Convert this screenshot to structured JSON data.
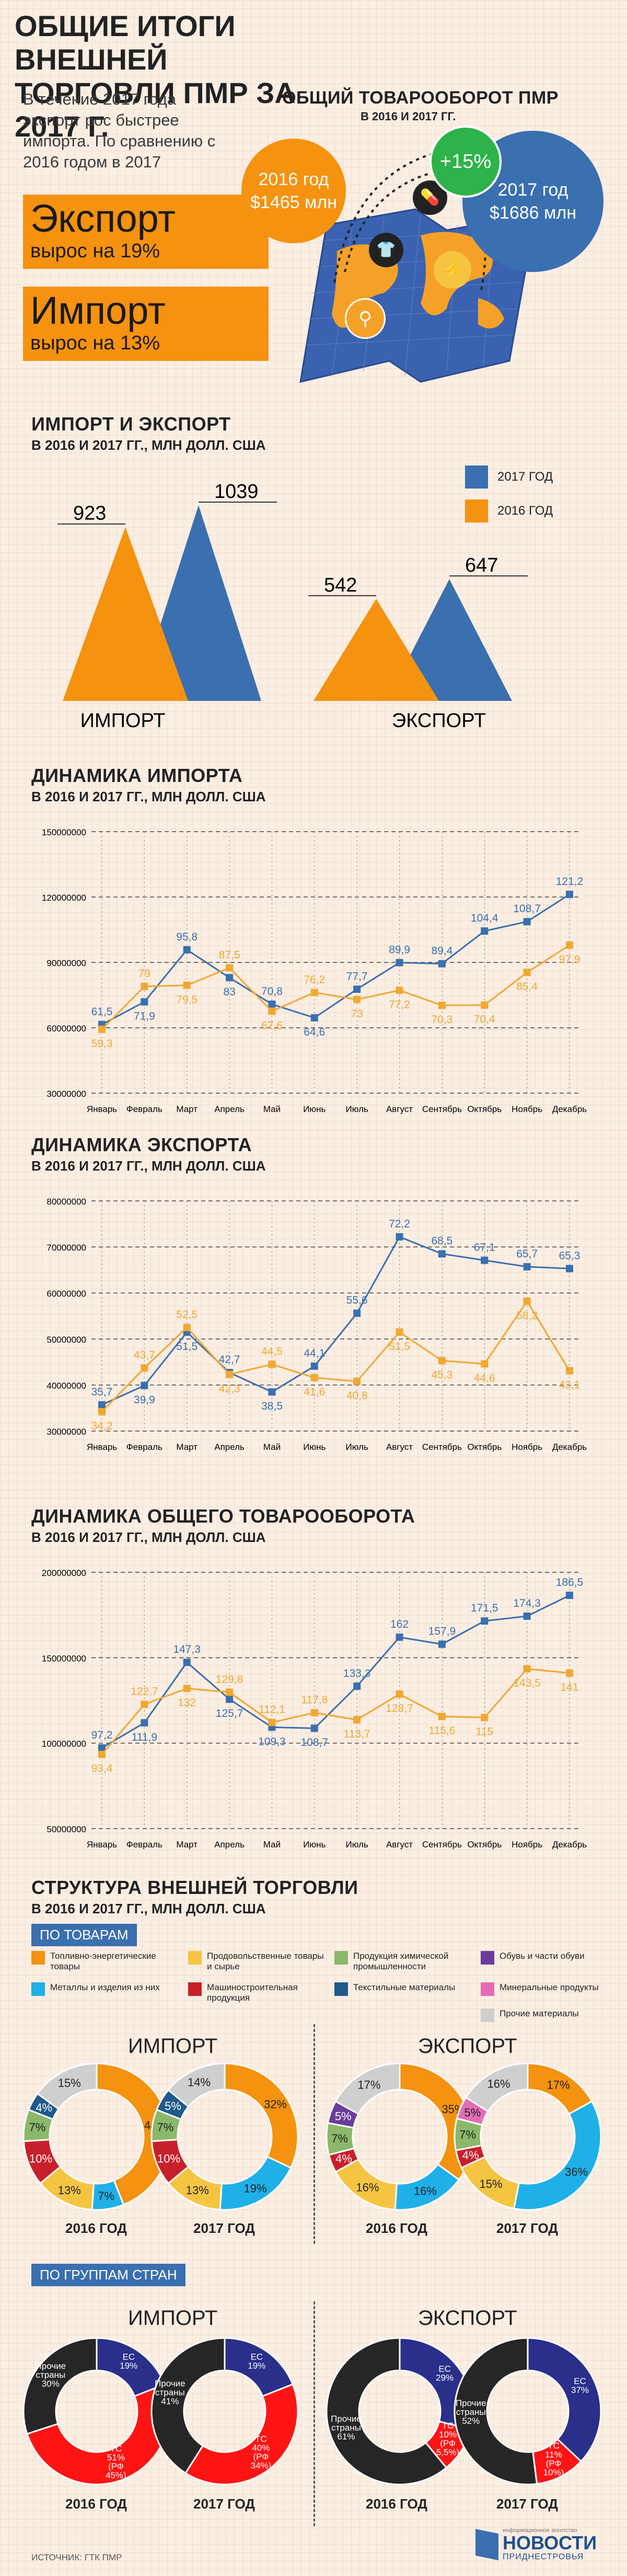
{
  "title": "ОБЩИЕ ИТОГИ ВНЕШНЕЙ ТОРГОВЛИ ПМР ЗА 2017 Г.",
  "intro": "В течение 2017 года экспорт рос быстрее импорта. По сравнению с 2016 годом в 2017",
  "export_box": {
    "big": "Экспорт",
    "small": "вырос на 19%"
  },
  "import_box": {
    "big": "Импорт",
    "small": "вырос на 13%"
  },
  "turnover": {
    "title": "ОБЩИЙ ТОВАРООБОРОТ ПМР",
    "subtitle": "В 2016 И 2017 ГГ.",
    "y2016_label": "2016 год",
    "y2016_value": "$1465 млн",
    "y2017_label": "2017 год",
    "y2017_value": "$1686 млн",
    "growth": "+15%"
  },
  "colors": {
    "orange": "#f5920f",
    "blue": "#3a6fb0",
    "green_badge": "#2db34a",
    "gray": "#3a3a3a",
    "red": "#e31e24"
  },
  "imp_exp": {
    "title": "ИМПОРТ И ЭКСПОРТ",
    "subtitle": "В 2016 И 2017 ГГ., МЛН ДОЛЛ. США",
    "legend": [
      {
        "label": "2017 ГОД",
        "color": "#3a6fb0"
      },
      {
        "label": "2016 ГОД",
        "color": "#f5920f"
      }
    ],
    "groups": [
      {
        "name": "ИМПОРТ",
        "v2016": 923,
        "v2017": 1039
      },
      {
        "name": "ЭКСПОРТ",
        "v2016": 542,
        "v2017": 647
      }
    ]
  },
  "chart_data": [
    {
      "type": "bar",
      "categories": [
        "ИМПОРТ",
        "ЭКСПОРТ"
      ],
      "series": [
        {
          "name": "2016 ГОД",
          "values": [
            923,
            542
          ]
        },
        {
          "name": "2017 ГОД",
          "values": [
            1039,
            647
          ]
        }
      ],
      "title": "ИМПОРТ И ЭКСПОРТ",
      "subtitle": "В 2016 И 2017 ГГ., МЛН ДОЛЛ. США"
    },
    {
      "type": "line",
      "title": "ДИНАМИКА ИМПОРТА",
      "subtitle": "В 2016 И 2017 ГГ., МЛН ДОЛЛ. США",
      "categories": [
        "Январь",
        "Февраль",
        "Март",
        "Апрель",
        "Май",
        "Июнь",
        "Июль",
        "Август",
        "Сентябрь",
        "Октябрь",
        "Ноябрь",
        "Декабрь"
      ],
      "yticks": [
        "150000000",
        "120000000",
        "90000000",
        "60000000",
        "30000000"
      ],
      "ylim": [
        30,
        150
      ],
      "series": [
        {
          "values": [
            61.5,
            71.9,
            95.8,
            83,
            70.8,
            64.6,
            77.7,
            89.9,
            89.4,
            104.4,
            108.7,
            121.2
          ],
          "labels": [
            "61,5",
            "71,9",
            "95,8",
            "83",
            "70,8",
            "64,6",
            "77,7",
            "89,9",
            "89,4",
            "104,4",
            "108,7",
            "121,2"
          ],
          "color": "#3a6fb0"
        },
        {
          "values": [
            59.3,
            79,
            79.5,
            87.5,
            67.6,
            76.2,
            73,
            77.2,
            70.3,
            70.4,
            85.4,
            97.9
          ],
          "labels": [
            "59,3",
            "79",
            "79,5",
            "87,5",
            "67,6",
            "76,2",
            "73",
            "77,2",
            "70,3",
            "70,4",
            "85,4",
            "97,9"
          ],
          "color": "#f0a830"
        }
      ]
    },
    {
      "type": "line",
      "title": "ДИНАМИКА ЭКСПОРТА",
      "subtitle": "В 2016 И 2017 ГГ., МЛН ДОЛЛ. США",
      "categories": [
        "Январь",
        "Февраль",
        "Март",
        "Апрель",
        "Май",
        "Июнь",
        "Июль",
        "Август",
        "Сентябрь",
        "Октябрь",
        "Ноябрь",
        "Декабрь"
      ],
      "yticks": [
        "80000000",
        "70000000",
        "60000000",
        "50000000",
        "40000000",
        "30000000"
      ],
      "ylim": [
        30,
        80
      ],
      "series": [
        {
          "values": [
            35.7,
            39.9,
            51.5,
            42.7,
            38.5,
            44.1,
            55.6,
            72.2,
            68.5,
            67.1,
            65.7,
            65.3
          ],
          "labels": [
            "35,7",
            "39,9",
            "51,5",
            "42,7",
            "38,5",
            "44,1",
            "55,6",
            "72,2",
            "68,5",
            "67,1",
            "65,7",
            "65,3"
          ],
          "color": "#3a6fb0"
        },
        {
          "values": [
            34.2,
            43.7,
            52.5,
            42.3,
            44.5,
            41.6,
            40.8,
            51.5,
            45.3,
            44.6,
            58.2,
            43.1
          ],
          "labels": [
            "34,2",
            "43,7",
            "52,5",
            "42,3",
            "44,5",
            "41,6",
            "40,8",
            "51,5",
            "45,3",
            "44,6",
            "58,2",
            "43,1"
          ],
          "color": "#f0a830"
        }
      ]
    },
    {
      "type": "line",
      "title": "ДИНАМИКА ОБЩЕГО ТОВАРООБОРОТА",
      "subtitle": "В 2016 И 2017 ГГ., МЛН ДОЛЛ. США",
      "categories": [
        "Январь",
        "Февраль",
        "Март",
        "Апрель",
        "Май",
        "Июнь",
        "Июль",
        "Август",
        "Сентябрь",
        "Октябрь",
        "Ноябрь",
        "Декабрь"
      ],
      "yticks": [
        "200000000",
        "150000000",
        "100000000",
        "50000000"
      ],
      "ylim": [
        50,
        200
      ],
      "series": [
        {
          "values": [
            97.2,
            111.9,
            147.3,
            125.7,
            109.3,
            108.7,
            133.3,
            162,
            157.9,
            171.5,
            174.3,
            186.5
          ],
          "labels": [
            "97,2",
            "111,9",
            "147,3",
            "125,7",
            "109,3",
            "108,7",
            "133,3",
            "162",
            "157,9",
            "171,5",
            "174,3",
            "186,5"
          ],
          "color": "#3a6fb0"
        },
        {
          "values": [
            93.4,
            122.7,
            132,
            129.8,
            112.1,
            117.8,
            113.7,
            128.7,
            115.6,
            115,
            143.5,
            141
          ],
          "labels": [
            "93,4",
            "122,7",
            "132",
            "129,8",
            "112,1",
            "117,8",
            "113,7",
            "128,7",
            "115,6",
            "115",
            "143,5",
            "141"
          ],
          "color": "#f0a830"
        }
      ]
    }
  ],
  "structure": {
    "title": "СТРУКТУРА ВНЕШНЕЙ ТОРГОВЛИ",
    "subtitle": "В 2016 И 2017 ГГ., МЛН ДОЛЛ. США",
    "tag_goods": "ПО ТОВАРАМ",
    "tag_countries": "ПО ГРУППАМ СТРАН",
    "legend": [
      {
        "label": "Топливно-энергетические товары",
        "color": "#f5920f"
      },
      {
        "label": "Продовольственные товары и сырье",
        "color": "#f5c542"
      },
      {
        "label": "Продукция химической промышленности",
        "color": "#8bb86a"
      },
      {
        "label": "Обувь и части обуви",
        "color": "#6a3d9a"
      },
      {
        "label": "Металлы и изделия из них",
        "color": "#1fb0e8"
      },
      {
        "label": "Машиностроительная продукция",
        "color": "#c8202a"
      },
      {
        "label": "Текстильные материалы",
        "color": "#1f5a8a"
      },
      {
        "label": "Минеральные продукты",
        "color": "#e36db4"
      },
      {
        "label": "Прочие материалы",
        "color": "#cfcfcf"
      }
    ],
    "import_title": "ИМПОРТ",
    "export_title": "ЭКСПОРТ",
    "y2016": "2016 ГОД",
    "y2017": "2017 ГОД",
    "goods": [
      {
        "slices": [
          {
            "v": 44,
            "c": "#f5920f",
            "l": "44%"
          },
          {
            "v": 7,
            "c": "#1fb0e8",
            "l": "7%"
          },
          {
            "v": 13,
            "c": "#f5c542",
            "l": "13%"
          },
          {
            "v": 10,
            "c": "#c8202a",
            "l": "10%"
          },
          {
            "v": 7,
            "c": "#8bb86a",
            "l": "7%"
          },
          {
            "v": 4,
            "c": "#1f5a8a",
            "l": "4%"
          },
          {
            "v": 15,
            "c": "#cfcfcf",
            "l": "15%"
          }
        ]
      },
      {
        "slices": [
          {
            "v": 32,
            "c": "#f5920f",
            "l": "32%"
          },
          {
            "v": 19,
            "c": "#1fb0e8",
            "l": "19%"
          },
          {
            "v": 13,
            "c": "#f5c542",
            "l": "13%"
          },
          {
            "v": 10,
            "c": "#c8202a",
            "l": "10%"
          },
          {
            "v": 7,
            "c": "#8bb86a",
            "l": "7%"
          },
          {
            "v": 5,
            "c": "#1f5a8a",
            "l": "5%"
          },
          {
            "v": 14,
            "c": "#cfcfcf",
            "l": "14%"
          }
        ]
      },
      {
        "slices": [
          {
            "v": 35,
            "c": "#f5920f",
            "l": "35%"
          },
          {
            "v": 16,
            "c": "#1fb0e8",
            "l": "16%"
          },
          {
            "v": 16,
            "c": "#f5c542",
            "l": "16%"
          },
          {
            "v": 4,
            "c": "#c8202a",
            "l": "4%"
          },
          {
            "v": 7,
            "c": "#8bb86a",
            "l": "7%"
          },
          {
            "v": 5,
            "c": "#6a3d9a",
            "l": "5%"
          },
          {
            "v": 17,
            "c": "#cfcfcf",
            "l": "17%"
          }
        ]
      },
      {
        "slices": [
          {
            "v": 17,
            "c": "#f5920f",
            "l": "17%"
          },
          {
            "v": 36,
            "c": "#1fb0e8",
            "l": "36%"
          },
          {
            "v": 15,
            "c": "#f5c542",
            "l": "15%"
          },
          {
            "v": 4,
            "c": "#c8202a",
            "l": "4%"
          },
          {
            "v": 7,
            "c": "#8bb86a",
            "l": "7%"
          },
          {
            "v": 5,
            "c": "#e36db4",
            "l": "5%"
          },
          {
            "v": 16,
            "c": "#cfcfcf",
            "l": "16%"
          }
        ]
      }
    ],
    "countries": [
      {
        "slices": [
          {
            "v": 19,
            "c": "#2a2f8a",
            "l": "ЕС 19%"
          },
          {
            "v": 51,
            "c": "#ff1414",
            "l": "ТС 51% (РФ 45%)"
          },
          {
            "v": 30,
            "c": "#262626",
            "l": "Прочие страны 30%"
          }
        ]
      },
      {
        "slices": [
          {
            "v": 19,
            "c": "#2a2f8a",
            "l": "ЕС 19%"
          },
          {
            "v": 40,
            "c": "#ff1414",
            "l": "ТС 40% (РФ 34%)"
          },
          {
            "v": 41,
            "c": "#262626",
            "l": "Прочие страны 41%"
          }
        ]
      },
      {
        "slices": [
          {
            "v": 29,
            "c": "#2a2f8a",
            "l": "ЕС 29%"
          },
          {
            "v": 10,
            "c": "#ff1414",
            "l": "ТС 10% (РФ 5,5%)"
          },
          {
            "v": 61,
            "c": "#262626",
            "l": "Прочие страны 61%"
          }
        ]
      },
      {
        "slices": [
          {
            "v": 37,
            "c": "#2a2f8a",
            "l": "ЕС 37%"
          },
          {
            "v": 11,
            "c": "#ff1414",
            "l": "ТС 11% (РФ 10%)"
          },
          {
            "v": 52,
            "c": "#262626",
            "l": "Прочие страны 52%"
          }
        ]
      }
    ]
  },
  "source": "ИСТОЧНИК: ГТК ПМР",
  "logo": {
    "main": "НОВОСТИ",
    "sub": "ПРИДНЕСТРОВЬЯ",
    "tag": "информационное агентство"
  }
}
